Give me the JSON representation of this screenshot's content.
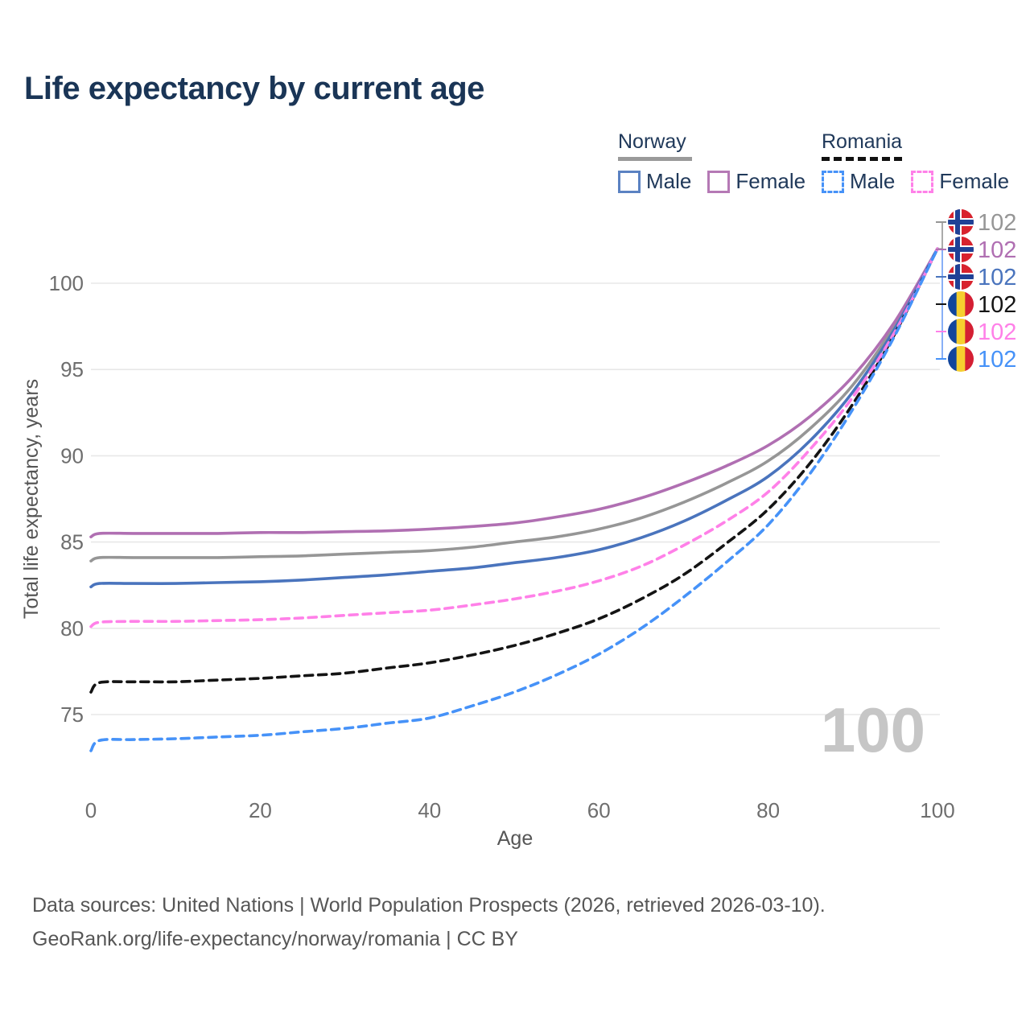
{
  "title": "Life expectancy by current age",
  "legend": {
    "groups": [
      {
        "country": "Norway",
        "items": [
          {
            "label": "Male",
            "color": "#4a74bd"
          },
          {
            "label": "Female",
            "color": "#b06fb2"
          }
        ]
      },
      {
        "country": "Romania",
        "items": [
          {
            "label": "Male",
            "color": "#4692f8"
          },
          {
            "label": "Female",
            "color": "#ff80e8"
          }
        ]
      }
    ]
  },
  "watermark_age": "100",
  "footer": {
    "line1": "Data sources: United Nations | World Population Prospects (2026, retrieved 2026-03-10).",
    "line2": "GeoRank.org/life-expectancy/norway/romania | CC BY"
  },
  "chart_data": {
    "type": "line",
    "title": "Life expectancy by current age",
    "xlabel": "Age",
    "ylabel": "Total life expectancy, years",
    "xlim": [
      0,
      100
    ],
    "ylim": [
      72,
      103
    ],
    "x_ticks": [
      0,
      20,
      40,
      60,
      80,
      100
    ],
    "y_ticks": [
      75,
      80,
      85,
      90,
      95,
      100
    ],
    "grid": "horizontal",
    "legend_position": "top-right",
    "x": [
      0,
      1,
      5,
      10,
      15,
      20,
      25,
      30,
      35,
      40,
      45,
      50,
      55,
      60,
      65,
      70,
      75,
      80,
      85,
      90,
      95,
      100
    ],
    "series": [
      {
        "name": "Norway Both sexes",
        "color": "#969696",
        "dash": false,
        "flag": "norway-flag-icon",
        "end_label": "102",
        "values": [
          83.9,
          84.1,
          84.1,
          84.1,
          84.1,
          84.15,
          84.2,
          84.3,
          84.4,
          84.5,
          84.7,
          85.0,
          85.3,
          85.75,
          86.4,
          87.3,
          88.4,
          89.7,
          91.6,
          94.1,
          97.6,
          102
        ]
      },
      {
        "name": "Norway Female",
        "color": "#b06fb2",
        "dash": false,
        "flag": "norway-flag-icon",
        "end_label": "102",
        "values": [
          85.3,
          85.5,
          85.5,
          85.5,
          85.5,
          85.55,
          85.55,
          85.6,
          85.65,
          85.75,
          85.9,
          86.1,
          86.45,
          86.9,
          87.55,
          88.4,
          89.4,
          90.6,
          92.3,
          94.6,
          97.8,
          102
        ]
      },
      {
        "name": "Norway Male",
        "color": "#4a74bd",
        "dash": false,
        "flag": "norway-flag-icon",
        "end_label": "102",
        "values": [
          82.4,
          82.6,
          82.6,
          82.6,
          82.65,
          82.7,
          82.8,
          82.95,
          83.1,
          83.3,
          83.5,
          83.8,
          84.1,
          84.55,
          85.25,
          86.2,
          87.4,
          88.8,
          90.9,
          93.7,
          97.4,
          102
        ]
      },
      {
        "name": "Romania Both sexes",
        "color": "#141414",
        "dash": true,
        "flag": "romania-flag-icon",
        "end_label": "102",
        "values": [
          76.3,
          76.85,
          76.9,
          76.9,
          77.0,
          77.1,
          77.25,
          77.4,
          77.7,
          78.0,
          78.45,
          79.0,
          79.7,
          80.55,
          81.7,
          83.1,
          84.9,
          86.9,
          89.6,
          93.0,
          97.1,
          102
        ]
      },
      {
        "name": "Romania Female",
        "color": "#ff80e8",
        "dash": true,
        "flag": "romania-flag-icon",
        "end_label": "102",
        "values": [
          80.1,
          80.35,
          80.4,
          80.4,
          80.45,
          80.5,
          80.6,
          80.75,
          80.9,
          81.05,
          81.35,
          81.7,
          82.15,
          82.75,
          83.6,
          84.8,
          86.2,
          87.9,
          90.4,
          93.4,
          97.2,
          102
        ]
      },
      {
        "name": "Romania Male",
        "color": "#4692f8",
        "dash": true,
        "flag": "romania-flag-icon",
        "end_label": "102",
        "values": [
          72.9,
          73.5,
          73.55,
          73.6,
          73.7,
          73.8,
          74.0,
          74.2,
          74.5,
          74.8,
          75.5,
          76.3,
          77.3,
          78.5,
          80.0,
          81.8,
          83.8,
          86.0,
          89.0,
          92.7,
          97.0,
          102
        ]
      }
    ],
    "end_label_order": [
      0,
      1,
      2,
      3,
      4,
      5
    ]
  }
}
